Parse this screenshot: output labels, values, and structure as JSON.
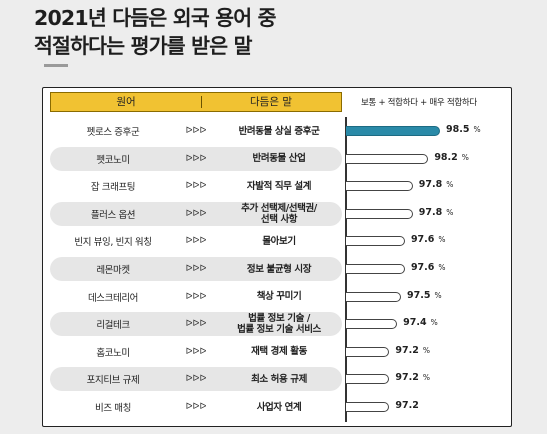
{
  "title_lines": [
    "2021년 다듬은 외국 용어 중",
    "적절하다는 평가를 받은 말"
  ],
  "header": {
    "col1": "원어",
    "col2": "다듬은 말"
  },
  "legend": "보통 + 적합하다 + 매우 적합하다",
  "arrows": "ᐅᐅᐅ",
  "colors": {
    "highlight_bar": "#2a8aa8",
    "header_fill": "#f1c232"
  },
  "chart_data": {
    "type": "bar",
    "orientation": "horizontal",
    "categories": [
      "펫로스 증후군",
      "펫코노미",
      "잡 크래프팅",
      "플러스 옵션",
      "빈지 뷰잉, 빈지 워칭",
      "레몬마켓",
      "데스크테리어",
      "리걸테크",
      "홈코노미",
      "포지티브 규제",
      "비즈 매칭"
    ],
    "replacements": [
      "반려동물 상실 증후군",
      "반려동물 산업",
      "자발적 직무 설계",
      "추가 선택제/선택권/\n선택 사항",
      "몰아보기",
      "정보 불균형 시장",
      "책상 꾸미기",
      "법률 정보 기술 /\n법률 정보 기술 서비스",
      "재택 경제 활동",
      "최소 허용 규제",
      "사업자 연계"
    ],
    "values": [
      98.5,
      98.2,
      97.8,
      97.8,
      97.6,
      97.6,
      97.5,
      97.4,
      97.2,
      97.2,
      97.2
    ],
    "value_labels": [
      "98.5",
      "98.2",
      "97.8",
      "97.8",
      "97.6",
      "97.6",
      "97.5",
      "97.4",
      "97.2",
      "97.2",
      "97.2"
    ],
    "unit_labels": [
      "%",
      "%",
      "%",
      "%",
      "%",
      "%",
      "%",
      "%",
      "%",
      "%",
      ""
    ],
    "highlight_index": 0,
    "series": [
      {
        "name": "보통 + 적합하다 + 매우 적합하다",
        "values": [
          98.5,
          98.2,
          97.8,
          97.8,
          97.6,
          97.6,
          97.5,
          97.4,
          97.2,
          97.2,
          97.2
        ]
      }
    ]
  }
}
